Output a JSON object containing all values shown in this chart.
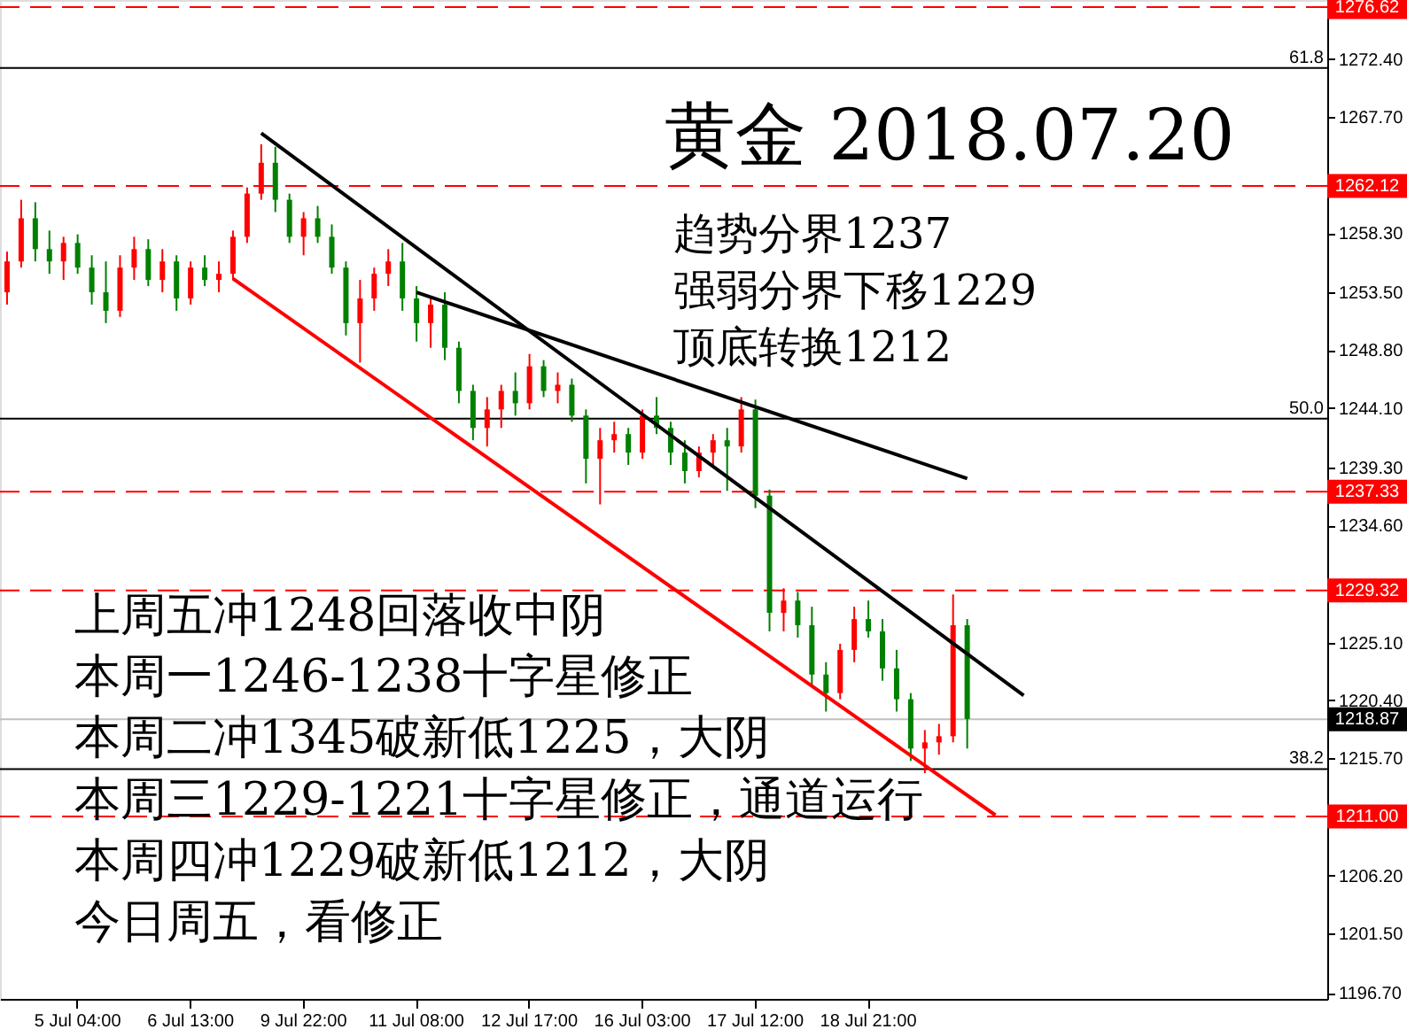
{
  "chart_data": {
    "type": "candlestick",
    "title": "黄金 2018.07.20",
    "categories": [
      null,
      null,
      null,
      null,
      null,
      "5 Jul 04:00",
      null,
      null,
      null,
      null,
      null,
      null,
      null,
      "6 Jul 13:00",
      null,
      null,
      null,
      null,
      null,
      null,
      null,
      "9 Jul 22:00",
      null,
      null,
      null,
      null,
      null,
      null,
      null,
      "11 Jul 08:00",
      null,
      null,
      null,
      null,
      null,
      null,
      null,
      "12 Jul 17:00",
      null,
      null,
      null,
      null,
      null,
      null,
      null,
      "16 Jul 03:00",
      null,
      null,
      null,
      null,
      null,
      null,
      null,
      "17 Jul 12:00",
      null,
      null,
      null,
      null,
      null,
      null,
      null,
      "18 Jul 21:00",
      null,
      null,
      null,
      null,
      null,
      null,
      null,
      null,
      null,
      null,
      null,
      null,
      null,
      null,
      null,
      null,
      null,
      null,
      null,
      null,
      null,
      null,
      null,
      null,
      null,
      null,
      null,
      null,
      null,
      null,
      null,
      null
    ],
    "ohlc": [
      [
        1253.5,
        1256.8,
        1252.5,
        1256.0
      ],
      [
        1256.0,
        1261.0,
        1255.5,
        1259.5
      ],
      [
        1259.5,
        1260.8,
        1256.0,
        1257.0
      ],
      [
        1257.0,
        1258.5,
        1255.0,
        1256.0
      ],
      [
        1256.0,
        1258.0,
        1254.5,
        1257.5
      ],
      [
        1257.5,
        1258.2,
        1255.0,
        1255.5
      ],
      [
        1255.5,
        1256.5,
        1252.5,
        1253.5
      ],
      [
        1253.5,
        1256.0,
        1251.0,
        1252.0
      ],
      [
        1252.0,
        1256.5,
        1251.5,
        1255.5
      ],
      [
        1255.5,
        1258.0,
        1254.5,
        1257.0
      ],
      [
        1257.0,
        1257.8,
        1254.0,
        1254.5
      ],
      [
        1254.5,
        1257.0,
        1253.5,
        1256.0
      ],
      [
        1256.0,
        1256.5,
        1252.0,
        1253.0
      ],
      [
        1253.0,
        1256.0,
        1252.5,
        1255.5
      ],
      [
        1255.5,
        1256.5,
        1254.0,
        1254.5
      ],
      [
        1254.5,
        1256.0,
        1253.5,
        1255.0
      ],
      [
        1255.0,
        1258.5,
        1254.5,
        1258.0
      ],
      [
        1258.0,
        1262.0,
        1257.5,
        1261.5
      ],
      [
        1261.5,
        1265.5,
        1261.0,
        1264.0
      ],
      [
        1264.0,
        1265.3,
        1260.0,
        1261.0
      ],
      [
        1261.0,
        1261.5,
        1257.5,
        1258.0
      ],
      [
        1258.0,
        1260.0,
        1256.5,
        1259.5
      ],
      [
        1259.5,
        1260.5,
        1257.5,
        1258.0
      ],
      [
        1258.0,
        1259.0,
        1255.0,
        1255.5
      ],
      [
        1255.5,
        1256.0,
        1250.0,
        1251.0
      ],
      [
        1251.0,
        1254.5,
        1247.8,
        1253.0
      ],
      [
        1253.0,
        1255.5,
        1252.0,
        1255.0
      ],
      [
        1255.0,
        1257.0,
        1254.0,
        1256.0
      ],
      [
        1256.0,
        1257.5,
        1252.0,
        1253.0
      ],
      [
        1253.0,
        1254.0,
        1249.5,
        1251.0
      ],
      [
        1251.0,
        1253.0,
        1249.0,
        1252.5
      ],
      [
        1252.5,
        1253.5,
        1248.0,
        1249.0
      ],
      [
        1249.0,
        1249.5,
        1244.5,
        1245.5
      ],
      [
        1245.5,
        1246.0,
        1241.5,
        1242.5
      ],
      [
        1242.5,
        1245.0,
        1241.0,
        1244.0
      ],
      [
        1244.0,
        1246.0,
        1242.5,
        1245.5
      ],
      [
        1245.5,
        1247.0,
        1243.5,
        1244.5
      ],
      [
        1244.5,
        1248.5,
        1244.0,
        1247.5
      ],
      [
        1247.5,
        1248.0,
        1245.0,
        1245.5
      ],
      [
        1245.5,
        1247.0,
        1244.5,
        1246.0
      ],
      [
        1246.0,
        1246.5,
        1243.0,
        1243.5
      ],
      [
        1243.5,
        1244.0,
        1238.0,
        1240.0
      ],
      [
        1240.0,
        1242.5,
        1236.3,
        1241.5
      ],
      [
        1241.5,
        1243.0,
        1240.5,
        1242.0
      ],
      [
        1242.0,
        1242.5,
        1239.5,
        1240.5
      ],
      [
        1240.5,
        1244.0,
        1240.0,
        1243.5
      ],
      [
        1243.5,
        1245.0,
        1242.0,
        1242.5
      ],
      [
        1242.5,
        1243.0,
        1239.5,
        1240.5
      ],
      [
        1240.5,
        1241.5,
        1238.0,
        1239.0
      ],
      [
        1239.0,
        1241.0,
        1238.5,
        1240.5
      ],
      [
        1240.5,
        1242.0,
        1239.5,
        1241.5
      ],
      [
        1241.5,
        1242.5,
        1237.4,
        1241.0
      ],
      [
        1241.0,
        1245.0,
        1240.5,
        1244.0
      ],
      [
        1244.0,
        1244.8,
        1236.0,
        1237.0
      ],
      [
        1237.0,
        1237.5,
        1226.0,
        1227.5
      ],
      [
        1227.5,
        1229.5,
        1226.0,
        1228.5
      ],
      [
        1228.5,
        1229.2,
        1225.5,
        1226.5
      ],
      [
        1226.5,
        1228.0,
        1221.5,
        1222.5
      ],
      [
        1222.5,
        1223.5,
        1219.5,
        1221.0
      ],
      [
        1221.0,
        1225.0,
        1220.5,
        1224.5
      ],
      [
        1224.5,
        1228.0,
        1223.5,
        1227.0
      ],
      [
        1227.0,
        1228.5,
        1225.5,
        1226.0
      ],
      [
        1226.0,
        1227.0,
        1222.0,
        1223.0
      ],
      [
        1223.0,
        1224.5,
        1219.5,
        1220.5
      ],
      [
        1220.5,
        1221.0,
        1215.5,
        1216.5
      ],
      [
        1216.5,
        1218.0,
        1214.5,
        1217.0
      ],
      [
        1217.0,
        1218.5,
        1216.0,
        1217.5
      ],
      [
        1217.5,
        1229.0,
        1217.0,
        1226.5
      ],
      [
        1226.5,
        1227.0,
        1216.5,
        1218.9
      ],
      null,
      null,
      null,
      null,
      null,
      null,
      null,
      null,
      null,
      null,
      null,
      null,
      null,
      null,
      null,
      null,
      null,
      null,
      null,
      null,
      null,
      null,
      null,
      null,
      null
    ],
    "colors": [
      "#ff0000",
      "#ff0000",
      "#008000",
      "#008000",
      "#ff0000",
      "#008000",
      "#008000",
      "#008000",
      "#ff0000",
      "#ff0000",
      "#008000",
      "#ff0000",
      "#008000",
      "#ff0000",
      "#008000",
      "#ff0000",
      "#ff0000",
      "#ff0000",
      "#ff0000",
      "#008000",
      "#008000",
      "#ff0000",
      "#008000",
      "#008000",
      "#008000",
      "#ff0000",
      "#ff0000",
      "#ff0000",
      "#008000",
      "#008000",
      "#ff0000",
      "#008000",
      "#008000",
      "#008000",
      "#ff0000",
      "#ff0000",
      "#008000",
      "#ff0000",
      "#008000",
      "#ff0000",
      "#008000",
      "#008000",
      "#ff0000",
      "#ff0000",
      "#008000",
      "#ff0000",
      "#008000",
      "#008000",
      "#008000",
      "#ff0000",
      "#ff0000",
      "#008000",
      "#ff0000",
      "#008000",
      "#008000",
      "#ff0000",
      "#008000",
      "#008000",
      "#008000",
      "#ff0000",
      "#ff0000",
      "#008000",
      "#008000",
      "#008000",
      "#008000",
      "#ff0000",
      "#ff0000",
      "#ff0000",
      "#008000",
      null,
      null,
      null,
      null,
      null,
      null,
      null,
      null,
      null,
      null,
      null,
      null,
      null,
      null,
      null,
      null,
      null,
      null,
      null,
      null,
      null,
      null,
      null,
      null,
      null
    ],
    "series": [
      {
        "type": "line",
        "color": "#000000",
        "values": [
          null,
          null,
          null,
          null,
          null,
          null,
          null,
          null,
          null,
          null,
          null,
          null,
          null,
          null,
          null,
          null,
          null,
          null,
          1266.4,
          null,
          null,
          null,
          null,
          null,
          null,
          null,
          null,
          null,
          null,
          null,
          null,
          null,
          null,
          null,
          null,
          null,
          null,
          null,
          null,
          null,
          null,
          null,
          null,
          null,
          null,
          null,
          null,
          null,
          null,
          null,
          null,
          null,
          null,
          null,
          null,
          null,
          null,
          null,
          null,
          null,
          null,
          null,
          null,
          null,
          null,
          null,
          null,
          null,
          null,
          null,
          null,
          null,
          1220.8,
          null,
          null,
          null,
          null,
          null,
          null,
          null,
          null,
          null,
          null,
          null,
          null,
          null,
          null,
          null,
          null,
          null,
          null,
          null,
          null,
          null
        ]
      },
      {
        "type": "line",
        "color": "#000000",
        "values": [
          null,
          null,
          null,
          null,
          null,
          null,
          null,
          null,
          null,
          null,
          null,
          null,
          null,
          null,
          null,
          null,
          null,
          null,
          null,
          null,
          null,
          null,
          null,
          null,
          null,
          null,
          null,
          null,
          null,
          1253.5,
          null,
          null,
          null,
          null,
          null,
          null,
          null,
          null,
          null,
          null,
          null,
          null,
          null,
          null,
          null,
          null,
          null,
          null,
          null,
          null,
          null,
          null,
          null,
          null,
          null,
          null,
          null,
          null,
          null,
          null,
          null,
          null,
          null,
          null,
          null,
          null,
          null,
          null,
          1238.4,
          null,
          null,
          null,
          null,
          null,
          null,
          null,
          null,
          null,
          null,
          null,
          null,
          null,
          null,
          null,
          null,
          null,
          null,
          null,
          null,
          null,
          null,
          null,
          null,
          null
        ]
      },
      {
        "type": "line",
        "color": "#ff0000",
        "values": [
          null,
          null,
          null,
          null,
          null,
          null,
          null,
          null,
          null,
          null,
          null,
          null,
          null,
          null,
          null,
          null,
          1254.6,
          null,
          null,
          null,
          null,
          null,
          null,
          null,
          null,
          null,
          null,
          null,
          null,
          null,
          null,
          null,
          null,
          null,
          null,
          null,
          null,
          null,
          null,
          null,
          null,
          null,
          null,
          null,
          null,
          null,
          null,
          null,
          null,
          null,
          null,
          null,
          null,
          null,
          null,
          null,
          null,
          null,
          null,
          null,
          null,
          null,
          null,
          null,
          null,
          null,
          null,
          null,
          null,
          null,
          1211.1,
          null,
          null,
          null,
          null,
          null,
          null,
          null,
          null,
          null,
          null,
          null,
          null,
          null,
          null,
          null,
          null,
          null,
          null,
          null,
          null,
          null,
          null,
          null
        ]
      }
    ],
    "ylim": [
      1196.2,
      1277.2
    ],
    "yticks": [
      {
        "value": 1196.7,
        "label": "1196.70"
      },
      {
        "value": 1201.5,
        "label": "1201.50"
      },
      {
        "value": 1206.2,
        "label": "1206.20"
      },
      {
        "value": 1215.7,
        "label": "1215.70"
      },
      {
        "value": 1220.4,
        "label": "1220.40"
      },
      {
        "value": 1225.1,
        "label": "1225.10"
      },
      {
        "value": 1234.6,
        "label": "1234.60"
      },
      {
        "value": 1239.3,
        "label": "1239.30"
      },
      {
        "value": 1244.1,
        "label": "1244.10"
      },
      {
        "value": 1248.8,
        "label": "1248.80"
      },
      {
        "value": 1253.5,
        "label": "1253.50"
      },
      {
        "value": 1258.3,
        "label": "1258.30"
      },
      {
        "value": 1267.7,
        "label": "1267.70"
      },
      {
        "value": 1272.4,
        "label": "1272.40"
      }
    ],
    "ref_lines": [
      {
        "axis": "y",
        "value": 1276.62,
        "label": "1276.62",
        "color": "#ff0000",
        "line_style": "dashed"
      },
      {
        "axis": "y",
        "value": 1262.12,
        "label": "1262.12",
        "color": "#ff0000",
        "line_style": "dashed"
      },
      {
        "axis": "y",
        "value": 1237.33,
        "label": "1237.33",
        "color": "#ff0000",
        "line_style": "dashed"
      },
      {
        "axis": "y",
        "value": 1229.32,
        "label": "1229.32",
        "color": "#ff0000",
        "line_style": "dashed"
      },
      {
        "axis": "y",
        "value": 1211.0,
        "label": "1211.00",
        "color": "#ff0000",
        "line_style": "dashed"
      },
      {
        "axis": "y",
        "value": 1218.87,
        "label": "1218.87",
        "color": "#c0c0c0",
        "line_style": "solid"
      },
      {
        "axis": "y",
        "value": 1271.68,
        "color": "#000000",
        "line_style": "solid"
      },
      {
        "axis": "y",
        "value": 1243.26,
        "color": "#000000",
        "line_style": "solid"
      },
      {
        "axis": "y",
        "value": 1214.84,
        "color": "#000000",
        "line_style": "solid"
      }
    ],
    "annotations": [
      "趋势分界1237",
      "强弱分界下移1229",
      "顶底转换1212",
      "上周五冲1248回落收中阴",
      "本周一1246-1238十字星修正",
      "本周二冲1345破新低1225，大阴",
      "本周三1229-1221十字星修正，通道运行",
      "本周四冲1229破新低1212，大阴",
      "今日周五，看修正",
      {
        "text": "61.8",
        "y": 1271.68
      },
      {
        "text": "50.0",
        "y": 1243.26
      },
      {
        "text": "38.2",
        "y": 1214.84
      }
    ],
    "grid": false
  }
}
